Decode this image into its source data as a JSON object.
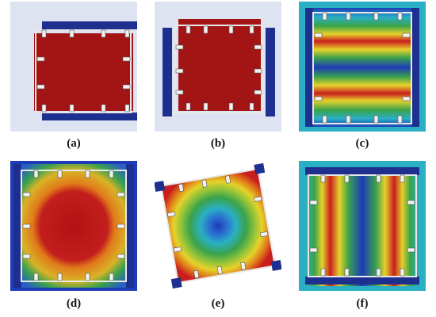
{
  "figure": {
    "labels": [
      "(a)",
      "(b)",
      "(c)",
      "(d)",
      "(e)",
      "(f)"
    ]
  },
  "colors": {
    "background": "#dde3f1",
    "frame_blue": "#1d2f8f",
    "red": "#b31212",
    "orange": "#e07a1a",
    "yellow": "#e6d22a",
    "green": "#3aa24b",
    "cyan": "#2ab0c4",
    "blue": "#1e3bb8"
  }
}
